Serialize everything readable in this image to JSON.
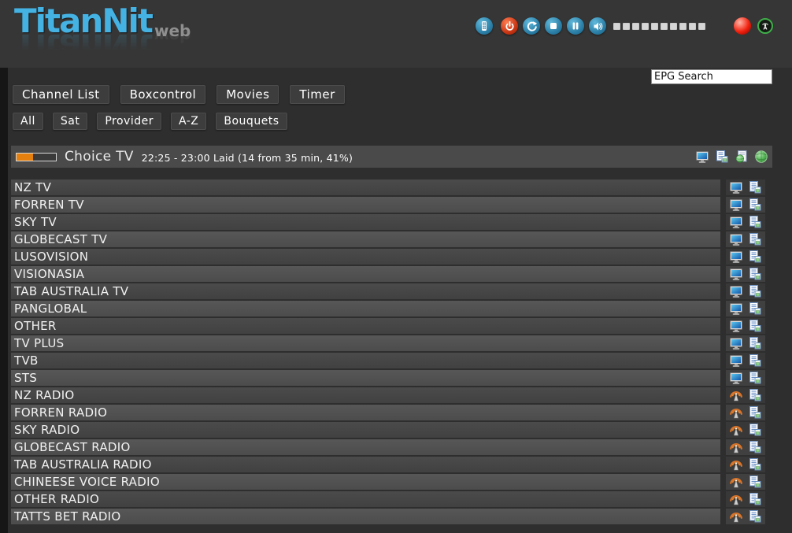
{
  "app": {
    "name": "TitanNit",
    "logo_suffix": "web"
  },
  "header_controls": {
    "icons": [
      "remote-control-icon",
      "power-icon",
      "refresh-icon",
      "stop-icon",
      "pause-icon",
      "volume-mute-icon"
    ],
    "volume_steps": 10,
    "status_icons": [
      "record-status-icon",
      "stream-status-icon"
    ]
  },
  "epg_search": {
    "value": "EPG Search"
  },
  "nav_primary": [
    {
      "label": "Channel List"
    },
    {
      "label": "Boxcontrol"
    },
    {
      "label": "Movies"
    },
    {
      "label": "Timer"
    }
  ],
  "nav_secondary": [
    {
      "label": "All"
    },
    {
      "label": "Sat"
    },
    {
      "label": "Provider"
    },
    {
      "label": "A-Z"
    },
    {
      "label": "Bouquets"
    }
  ],
  "now_playing": {
    "channel_name": "Choice TV",
    "epg_info": "22:25 - 23:00 Laid (14 from 35 min, 41%)",
    "progress_percent": 41,
    "icons": [
      "tv-screen-icon",
      "epg-list-icon",
      "webtv-page-icon",
      "globe-icon"
    ]
  },
  "channels": [
    {
      "name": "NZ TV",
      "type": "tv"
    },
    {
      "name": "FORREN TV",
      "type": "tv"
    },
    {
      "name": "SKY TV",
      "type": "tv"
    },
    {
      "name": "GLOBECAST TV",
      "type": "tv"
    },
    {
      "name": "LUSOVISION",
      "type": "tv"
    },
    {
      "name": "VISIONASIA",
      "type": "tv"
    },
    {
      "name": "TAB AUSTRALIA TV",
      "type": "tv"
    },
    {
      "name": "PANGLOBAL",
      "type": "tv"
    },
    {
      "name": "OTHER",
      "type": "tv"
    },
    {
      "name": "TV PLUS",
      "type": "tv"
    },
    {
      "name": "TVB",
      "type": "tv"
    },
    {
      "name": "STS",
      "type": "tv"
    },
    {
      "name": "NZ RADIO",
      "type": "radio"
    },
    {
      "name": "FORREN RADIO",
      "type": "radio"
    },
    {
      "name": "SKY RADIO",
      "type": "radio"
    },
    {
      "name": "GLOBECAST RADIO",
      "type": "radio"
    },
    {
      "name": "TAB AUSTRALIA RADIO",
      "type": "radio"
    },
    {
      "name": "CHINEESE VOICE RADIO",
      "type": "radio"
    },
    {
      "name": "OTHER RADIO",
      "type": "radio"
    },
    {
      "name": "TATTS BET RADIO",
      "type": "radio"
    }
  ],
  "colors": {
    "logo_blue": "#45b2e4",
    "accent_orange": "#e5800f",
    "record_red": "#f2220f",
    "control_blue": "#2a7ea6",
    "power_red": "#c63413",
    "stream_green": "#3fae49",
    "row_dark": "#414141",
    "row_light": "#4c4c4c",
    "background": "#2e2e2e"
  }
}
